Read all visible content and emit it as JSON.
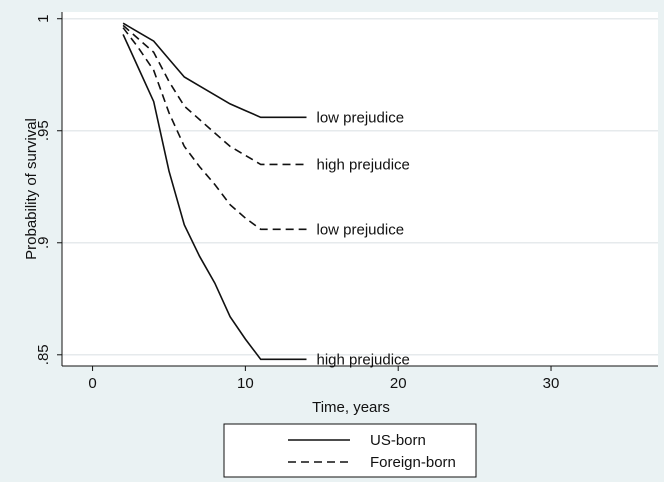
{
  "chart_data": {
    "type": "line",
    "title": "",
    "xlabel": "Time, years",
    "ylabel": "Probability of survival",
    "xlim": [
      -2,
      37
    ],
    "ylim": [
      0.845,
      1.003
    ],
    "x_ticks": [
      0,
      10,
      20,
      30
    ],
    "x_tick_labels": [
      "0",
      "10",
      "20",
      "30"
    ],
    "y_ticks": [
      1,
      0.95,
      0.9,
      0.85
    ],
    "y_tick_labels": [
      "1",
      ".95",
      ".9",
      ".85"
    ],
    "grid": "horizontal",
    "legend": {
      "placement": "bottom",
      "entries": [
        {
          "label": "US-born",
          "dash": "solid"
        },
        {
          "label": "Foreign-born",
          "dash": "dashed"
        }
      ]
    },
    "series": [
      {
        "group": "US-born",
        "label": "low prejudice",
        "dash": "solid",
        "x": [
          2,
          3,
          4,
          5,
          6,
          7,
          8,
          9,
          10,
          11,
          14
        ],
        "y": [
          0.998,
          0.994,
          0.99,
          0.982,
          0.974,
          0.97,
          0.966,
          0.962,
          0.959,
          0.956,
          0.956
        ]
      },
      {
        "group": "Foreign-born",
        "label": "high prejudice",
        "dash": "dashed",
        "x": [
          2,
          3,
          4,
          5,
          6,
          7,
          8,
          9,
          10,
          11,
          14
        ],
        "y": [
          0.997,
          0.991,
          0.985,
          0.972,
          0.961,
          0.955,
          0.949,
          0.943,
          0.939,
          0.935,
          0.935
        ]
      },
      {
        "group": "Foreign-born",
        "label": "low prejudice",
        "dash": "dashed",
        "x": [
          2,
          3,
          4,
          5,
          6,
          7,
          8,
          9,
          10,
          11,
          14
        ],
        "y": [
          0.996,
          0.987,
          0.977,
          0.958,
          0.943,
          0.934,
          0.926,
          0.917,
          0.911,
          0.906,
          0.906
        ]
      },
      {
        "group": "US-born",
        "label": "high prejudice",
        "dash": "solid",
        "x": [
          2,
          3,
          4,
          5,
          6,
          7,
          8,
          9,
          10,
          11,
          14
        ],
        "y": [
          0.993,
          0.978,
          0.963,
          0.932,
          0.908,
          0.894,
          0.882,
          0.867,
          0.857,
          0.848,
          0.848
        ]
      }
    ]
  },
  "colors": {
    "background": "#eaf2f3",
    "plot_background": "#ffffff",
    "grid": "#e6eaec",
    "line": "#111111"
  }
}
